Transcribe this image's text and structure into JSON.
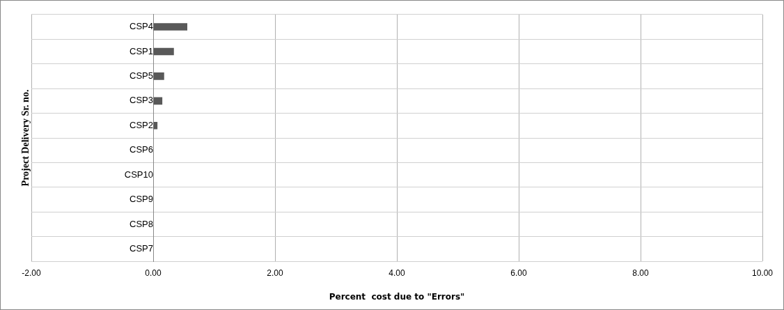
{
  "chart_data": {
    "type": "bar",
    "orientation": "horizontal",
    "xlabel": "Percent  cost due to \"Errors\"",
    "ylabel": "Project Delivery Sr. no.",
    "categories": [
      "CSP4",
      "CSP1",
      "CSP5",
      "CSP3",
      "CSP2",
      "CSP6",
      "CSP10",
      "CSP9",
      "CSP8",
      "CSP7"
    ],
    "values": [
      0.56,
      0.34,
      0.18,
      0.15,
      0.07,
      0,
      0,
      0,
      0,
      0
    ],
    "color": "#595959",
    "xlim": [
      -2,
      10
    ],
    "xticks": [
      {
        "value": -2,
        "label": "-2.00"
      },
      {
        "value": 0,
        "label": "0.00"
      },
      {
        "value": 2,
        "label": "2.00"
      },
      {
        "value": 4,
        "label": "4.00"
      },
      {
        "value": 6,
        "label": "6.00"
      },
      {
        "value": 8,
        "label": "8.00"
      },
      {
        "value": 10,
        "label": "10.00"
      }
    ],
    "grid": true,
    "legend": false
  }
}
